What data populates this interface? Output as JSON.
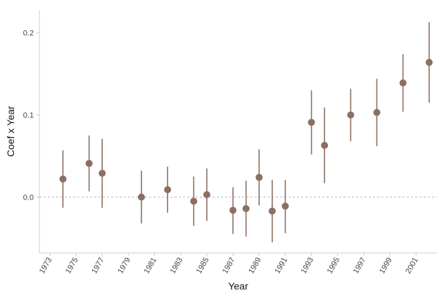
{
  "chart_data": {
    "type": "scatter",
    "title": "",
    "xlabel": "Year",
    "ylabel": "Coef x Year",
    "xlim": [
      1972.2,
      2002.6
    ],
    "ylim": [
      -0.068,
      0.228
    ],
    "x_ticks": [
      1973,
      1975,
      1977,
      1979,
      1981,
      1983,
      1985,
      1987,
      1989,
      1991,
      1993,
      1995,
      1997,
      1999,
      2001
    ],
    "y_ticks": [
      {
        "value": 0.0,
        "label": "0.0"
      },
      {
        "value": 0.1,
        "label": "0.1"
      },
      {
        "value": 0.2,
        "label": "0.2"
      }
    ],
    "reference_line": {
      "y": 0,
      "style": "dashed",
      "color": "#bbbbbb"
    },
    "grid": false,
    "legend": "none",
    "colors": {
      "point": "#8c6f62",
      "error_bar": "#8c6f62",
      "axis": "#cccccc"
    },
    "points": [
      {
        "x": 1974,
        "y": 0.022,
        "low": -0.013,
        "high": 0.057
      },
      {
        "x": 1976,
        "y": 0.041,
        "low": 0.007,
        "high": 0.075
      },
      {
        "x": 1977,
        "y": 0.029,
        "low": -0.013,
        "high": 0.071
      },
      {
        "x": 1980,
        "y": 0.0,
        "low": -0.032,
        "high": 0.032
      },
      {
        "x": 1982,
        "y": 0.009,
        "low": -0.019,
        "high": 0.037
      },
      {
        "x": 1984,
        "y": -0.005,
        "low": -0.035,
        "high": 0.025
      },
      {
        "x": 1985,
        "y": 0.003,
        "low": -0.029,
        "high": 0.035
      },
      {
        "x": 1987,
        "y": -0.016,
        "low": -0.045,
        "high": 0.012
      },
      {
        "x": 1988,
        "y": -0.014,
        "low": -0.048,
        "high": 0.02
      },
      {
        "x": 1989,
        "y": 0.024,
        "low": -0.01,
        "high": 0.058
      },
      {
        "x": 1990,
        "y": -0.017,
        "low": -0.055,
        "high": 0.021
      },
      {
        "x": 1991,
        "y": -0.011,
        "low": -0.044,
        "high": 0.021
      },
      {
        "x": 1993,
        "y": 0.091,
        "low": 0.052,
        "high": 0.13
      },
      {
        "x": 1994,
        "y": 0.063,
        "low": 0.017,
        "high": 0.109
      },
      {
        "x": 1996,
        "y": 0.1,
        "low": 0.068,
        "high": 0.132
      },
      {
        "x": 1998,
        "y": 0.103,
        "low": 0.062,
        "high": 0.144
      },
      {
        "x": 2000,
        "y": 0.139,
        "low": 0.104,
        "high": 0.174
      },
      {
        "x": 2002,
        "y": 0.164,
        "low": 0.115,
        "high": 0.213
      }
    ]
  }
}
